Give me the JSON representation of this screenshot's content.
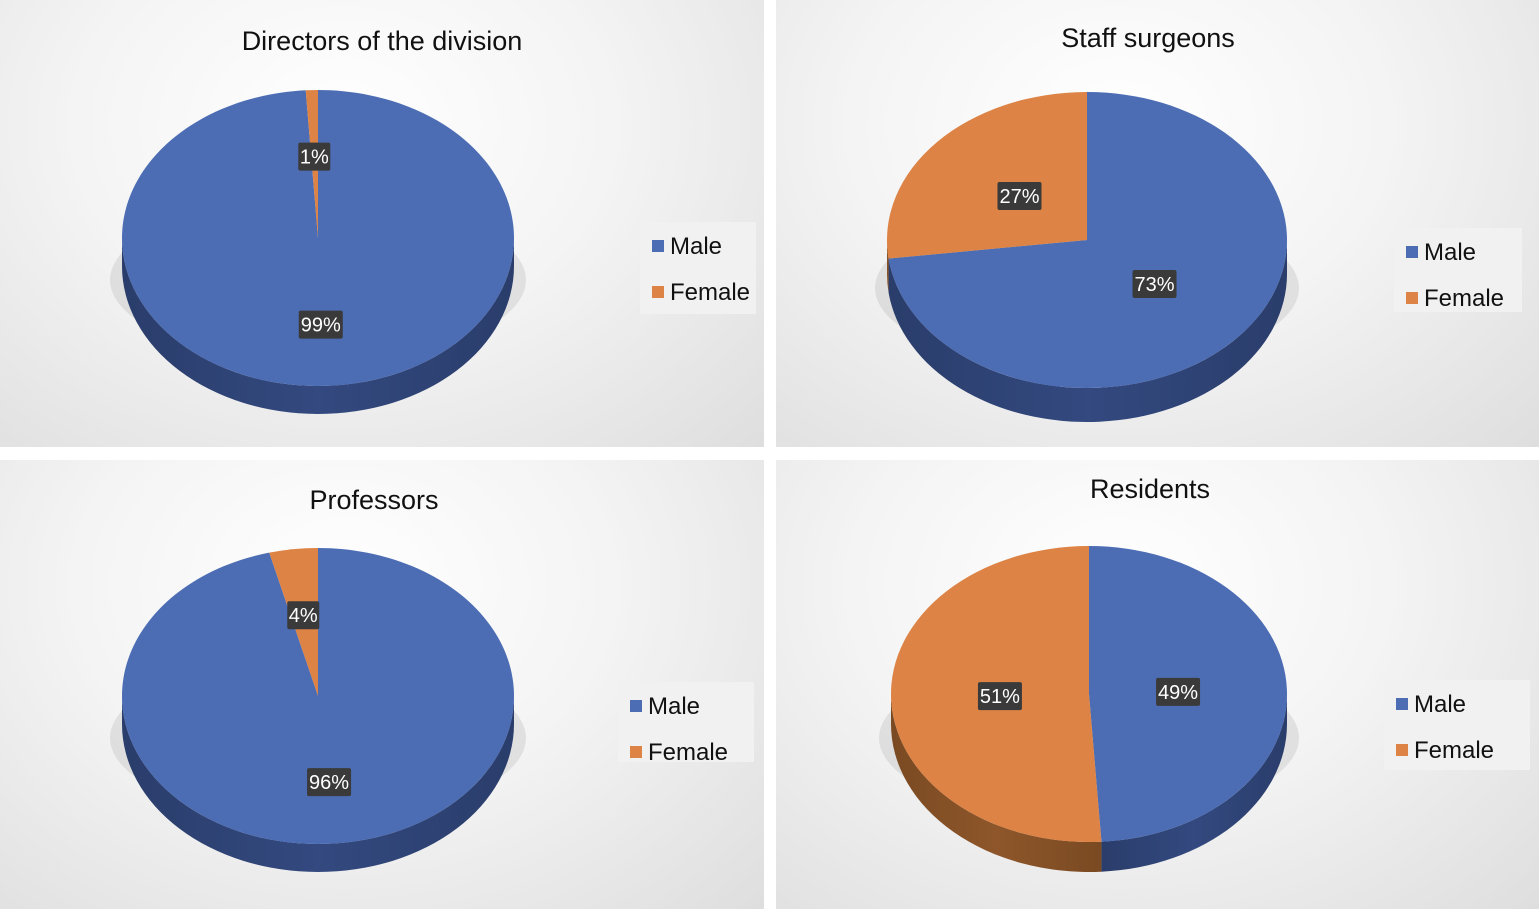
{
  "colors": {
    "male": "#4C6DB4",
    "female": "#DC8345",
    "male_side": "#2A3D6B",
    "female_side": "#7A4A22"
  },
  "chart_data": [
    {
      "type": "pie",
      "title": "Directors of the division",
      "slices": [
        {
          "label": "Male",
          "value": 99,
          "display": "99%"
        },
        {
          "label": "Female",
          "value": 1,
          "display": "1%"
        }
      ],
      "legend": [
        "Male",
        "Female"
      ],
      "legend_position": "right"
    },
    {
      "type": "pie",
      "title": "Staff surgeons",
      "slices": [
        {
          "label": "Male",
          "value": 73,
          "display": "73%"
        },
        {
          "label": "Female",
          "value": 27,
          "display": "27%"
        }
      ],
      "legend": [
        "Male",
        "Female"
      ],
      "legend_position": "right"
    },
    {
      "type": "pie",
      "title": "Professors",
      "slices": [
        {
          "label": "Male",
          "value": 96,
          "display": "96%"
        },
        {
          "label": "Female",
          "value": 4,
          "display": "4%"
        }
      ],
      "legend": [
        "Male",
        "Female"
      ],
      "legend_position": "right"
    },
    {
      "type": "pie",
      "title": "Residents",
      "slices": [
        {
          "label": "Male",
          "value": 49,
          "display": "49%"
        },
        {
          "label": "Female",
          "value": 51,
          "display": "51%"
        }
      ],
      "legend": [
        "Male",
        "Female"
      ],
      "legend_position": "right"
    }
  ]
}
